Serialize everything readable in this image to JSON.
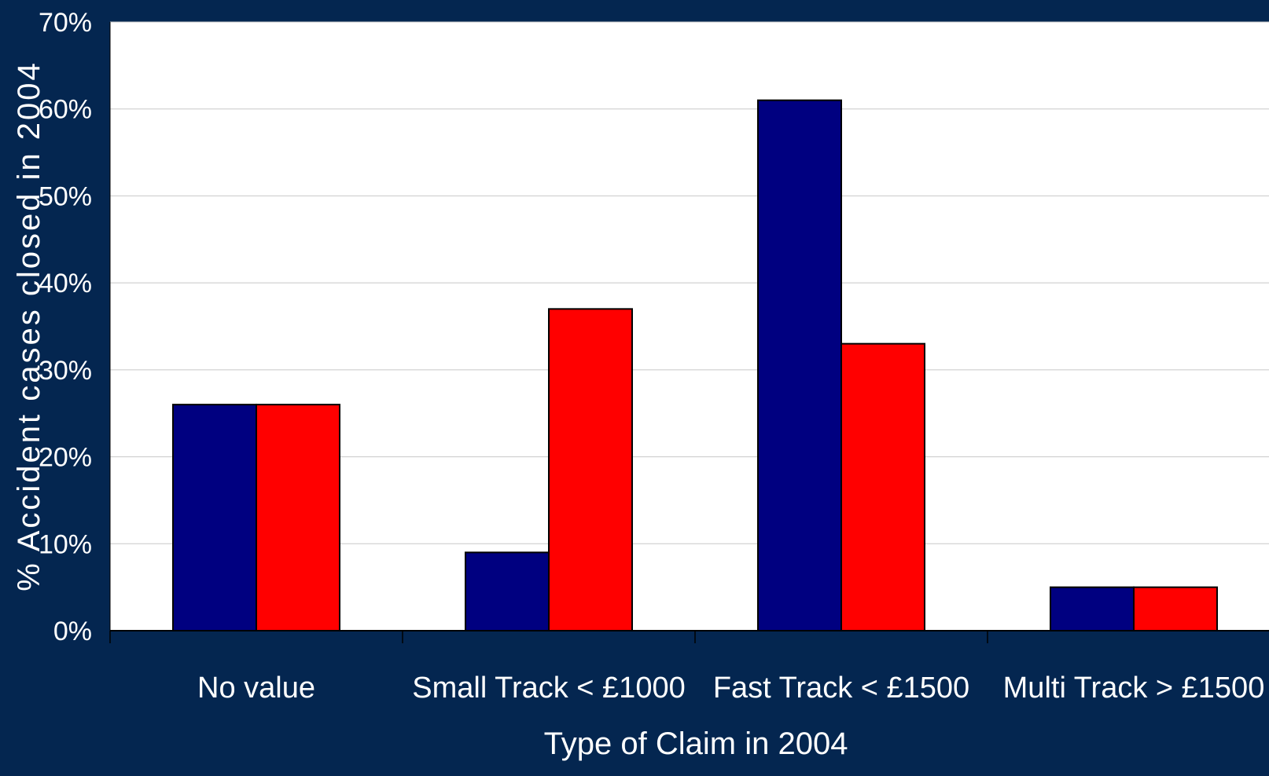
{
  "colors": {
    "background": "#042650",
    "plot_background": "#ffffff",
    "series_1": "#000080",
    "series_2": "#ff0000",
    "gridline": "#c8c8c8",
    "text": "#ffffff"
  },
  "chart_data": {
    "type": "bar",
    "title": "",
    "xlabel": "Type of Claim in 2004",
    "ylabel": "% Accident cases closed in 2004",
    "categories": [
      "No value",
      "Small Track < £1000",
      "Fast Track < £1500",
      "Multi Track > £1500"
    ],
    "series": [
      {
        "values": [
          26,
          9,
          61,
          5
        ],
        "color": "#000080"
      },
      {
        "values": [
          26,
          37,
          33,
          5
        ],
        "color": "#ff0000"
      }
    ],
    "ylim": [
      0,
      70
    ],
    "yticks": [
      0,
      10,
      20,
      30,
      40,
      50,
      60,
      70
    ],
    "ytick_labels": [
      "0%",
      "10%",
      "20%",
      "30%",
      "40%",
      "50%",
      "60%",
      "70%"
    ],
    "grid": true,
    "legend": "none"
  }
}
